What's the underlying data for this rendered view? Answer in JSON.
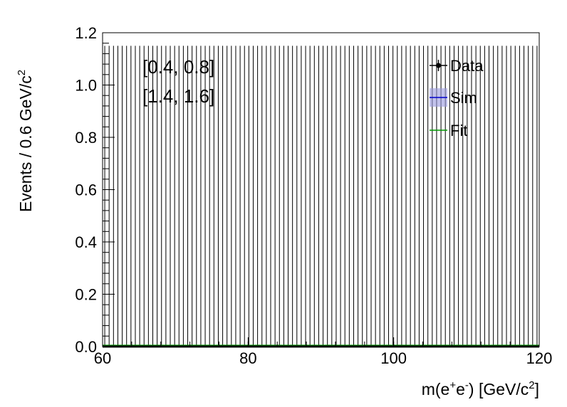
{
  "chart_data": {
    "type": "bar",
    "xlabel": {
      "pre": "m(e",
      "sup1": "+",
      "mid": "e",
      "sup2": "-",
      "post": ") [GeV/c",
      "sup3": "2",
      "end": "]"
    },
    "ylabel": {
      "text": "Events / 0.6 GeV/c",
      "sup": "2"
    },
    "xlim": [
      60,
      120
    ],
    "ylim": [
      0,
      1.2
    ],
    "bin_width": 0.6,
    "xticks": [
      "60",
      "80",
      "100",
      "120"
    ],
    "yticks": [
      "0.0",
      "0.2",
      "0.4",
      "0.6",
      "0.8",
      "1.0",
      "1.2"
    ],
    "annotations": [
      "[0.4, 0.8]",
      "[1.4, 1.6]"
    ],
    "legend": [
      {
        "label": "Data",
        "style": "marker-line",
        "color": "#000000"
      },
      {
        "label": "Sim",
        "style": "band-line",
        "color": "#0000cc",
        "fill": "#9999dd"
      },
      {
        "label": "Fit",
        "style": "line",
        "color": "#009900"
      }
    ],
    "legend_position": "top-right",
    "series": [
      {
        "name": "Data",
        "values": [],
        "error_upper": 1.15,
        "color": "#000000"
      },
      {
        "name": "Sim",
        "values": [],
        "color": "#0000cc"
      },
      {
        "name": "Fit",
        "values": [],
        "color": "#009900"
      }
    ]
  }
}
